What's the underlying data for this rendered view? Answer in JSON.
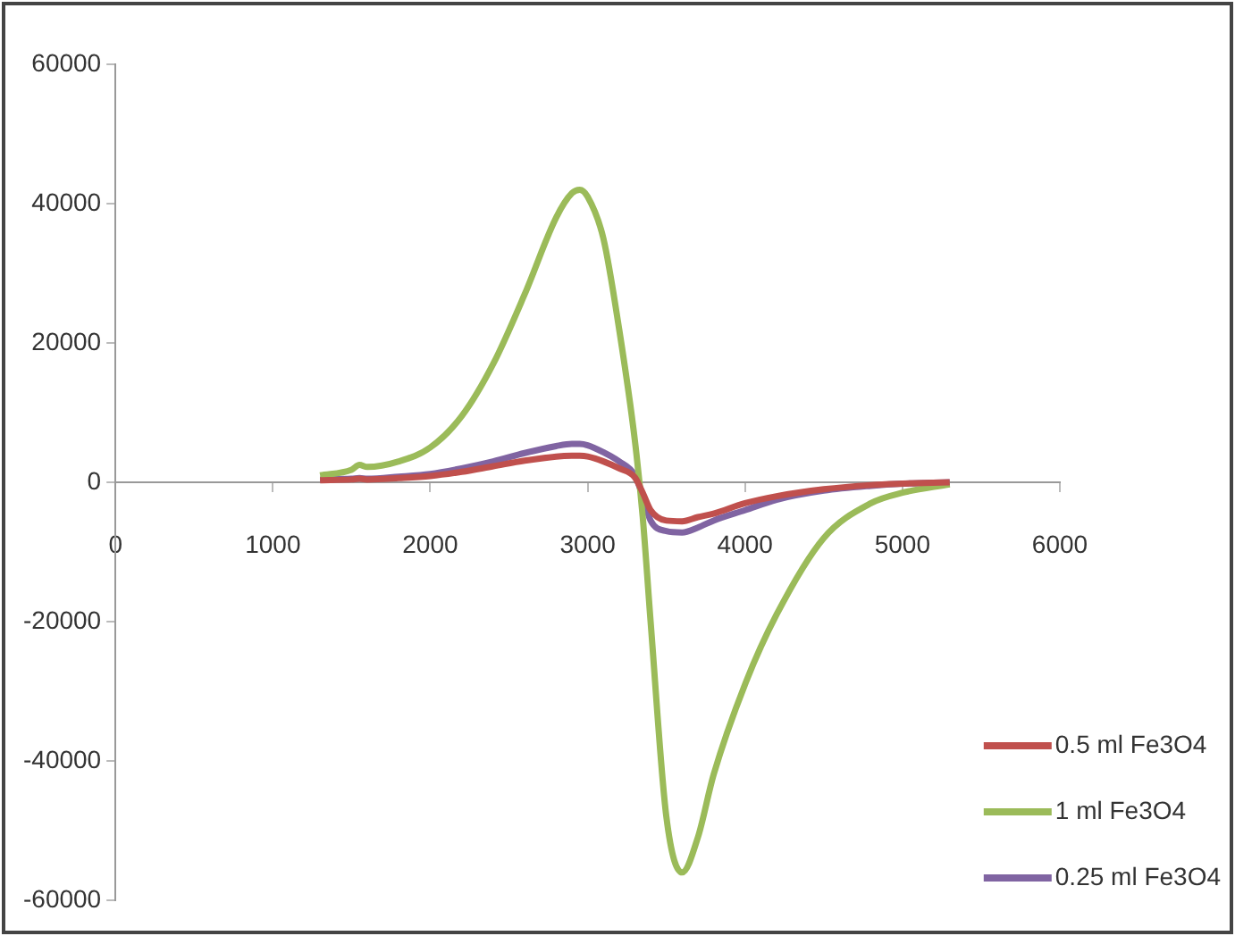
{
  "chart_data": {
    "type": "line",
    "xlim": [
      0,
      6000
    ],
    "xticks": [
      0,
      1000,
      2000,
      3000,
      4000,
      5000,
      6000
    ],
    "ylim": [
      -60000,
      60000
    ],
    "yticks": [
      -60000,
      -40000,
      -20000,
      0,
      20000,
      40000,
      60000
    ],
    "grid": false,
    "legend": "bottom right",
    "marker": "none",
    "line_style": "solid",
    "x": [
      1300,
      1500,
      1550,
      1600,
      1800,
      2000,
      2200,
      2400,
      2600,
      2800,
      2900,
      2950,
      3000,
      3100,
      3200,
      3300,
      3350,
      3400,
      3500,
      3600,
      3700,
      3800,
      4000,
      4200,
      4500,
      4800,
      5000,
      5300
    ],
    "series": [
      {
        "name": "0.5 ml Fe3O4",
        "color": "#c0504d",
        "values": [
          300,
          400,
          500,
          400,
          600,
          900,
          1500,
          2300,
          3100,
          3700,
          3800,
          3800,
          3700,
          3000,
          2000,
          700,
          -1500,
          -4000,
          -5500,
          -5600,
          -5000,
          -4500,
          -3000,
          -2000,
          -1000,
          -400,
          -200,
          0
        ]
      },
      {
        "name": "1 ml Fe3O4",
        "color": "#9bbb59",
        "values": [
          1000,
          1800,
          2500,
          2200,
          3000,
          5000,
          9500,
          17000,
          27000,
          38000,
          41500,
          42000,
          41000,
          35000,
          22000,
          6000,
          -5000,
          -20000,
          -48000,
          -56000,
          -51000,
          -42000,
          -29000,
          -19000,
          -8000,
          -3000,
          -1500,
          -300
        ]
      },
      {
        "name": "0.25 ml Fe3O4",
        "color": "#8064a2",
        "values": [
          400,
          500,
          600,
          500,
          800,
          1200,
          2000,
          3000,
          4200,
          5200,
          5500,
          5500,
          5300,
          4300,
          3000,
          1000,
          -2000,
          -5500,
          -7000,
          -7200,
          -6500,
          -5500,
          -4000,
          -2500,
          -1200,
          -500,
          -200,
          0
        ]
      }
    ]
  }
}
